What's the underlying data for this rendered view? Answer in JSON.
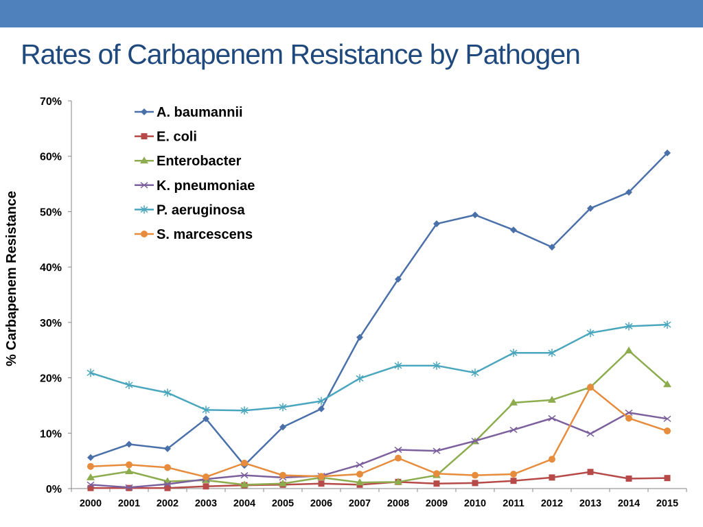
{
  "slide": {
    "title": "Rates of Carbapenem Resistance by Pathogen",
    "accent_color": "#4f81bd",
    "title_color": "#1f497d"
  },
  "chart_data": {
    "type": "line",
    "title": "",
    "xlabel": "",
    "ylabel": "% Carbapenem Resistance",
    "ylim": [
      0,
      70
    ],
    "y_tick_values": [
      0,
      10,
      20,
      30,
      40,
      50,
      60,
      70
    ],
    "y_tick_labels": [
      "0%",
      "10%",
      "20%",
      "30%",
      "40%",
      "50%",
      "60%",
      "70%"
    ],
    "x": [
      "2000",
      "2001",
      "2002",
      "2003",
      "2004",
      "2005",
      "2006",
      "2007",
      "2008",
      "2009",
      "2010",
      "2011",
      "2012",
      "2013",
      "2014",
      "2015"
    ],
    "grid": false,
    "legend_position": "top-left-inside",
    "series": [
      {
        "name": "A. baumannii",
        "color": "#4a70aa",
        "marker": "diamond",
        "values": [
          5.6,
          8.0,
          7.2,
          12.6,
          4.2,
          11.1,
          14.4,
          27.3,
          37.8,
          47.8,
          49.4,
          46.7,
          43.6,
          50.6,
          53.5,
          60.6
        ]
      },
      {
        "name": "E. coli",
        "color": "#b64a48",
        "marker": "square",
        "values": [
          0.1,
          0.1,
          0.1,
          0.4,
          0.6,
          0.7,
          0.9,
          0.7,
          1.2,
          0.9,
          1.0,
          1.4,
          2.0,
          3.0,
          1.8,
          1.9
        ]
      },
      {
        "name": "Enterobacter",
        "color": "#8cac4e",
        "marker": "triangle",
        "values": [
          2.0,
          3.1,
          1.3,
          1.5,
          0.7,
          0.9,
          2.0,
          1.1,
          1.2,
          2.4,
          8.5,
          15.5,
          16.0,
          18.3,
          24.9,
          18.8
        ]
      },
      {
        "name": "K. pneumoniae",
        "color": "#7c609d",
        "marker": "x",
        "values": [
          0.7,
          0.2,
          0.8,
          1.7,
          2.4,
          2.0,
          2.3,
          4.3,
          7.0,
          6.8,
          8.6,
          10.6,
          12.7,
          9.9,
          13.7,
          12.6
        ]
      },
      {
        "name": "P. aeruginosa",
        "color": "#4aa6bd",
        "marker": "star",
        "values": [
          20.9,
          18.7,
          17.3,
          14.2,
          14.1,
          14.7,
          15.8,
          19.9,
          22.2,
          22.2,
          20.9,
          24.5,
          24.5,
          28.1,
          29.3,
          29.6
        ]
      },
      {
        "name": "S. marcescens",
        "color": "#e68c3c",
        "marker": "circle",
        "values": [
          4.0,
          4.3,
          3.8,
          2.1,
          4.6,
          2.4,
          2.2,
          2.6,
          5.5,
          2.7,
          2.4,
          2.6,
          5.3,
          18.3,
          12.7,
          10.4
        ]
      }
    ]
  }
}
